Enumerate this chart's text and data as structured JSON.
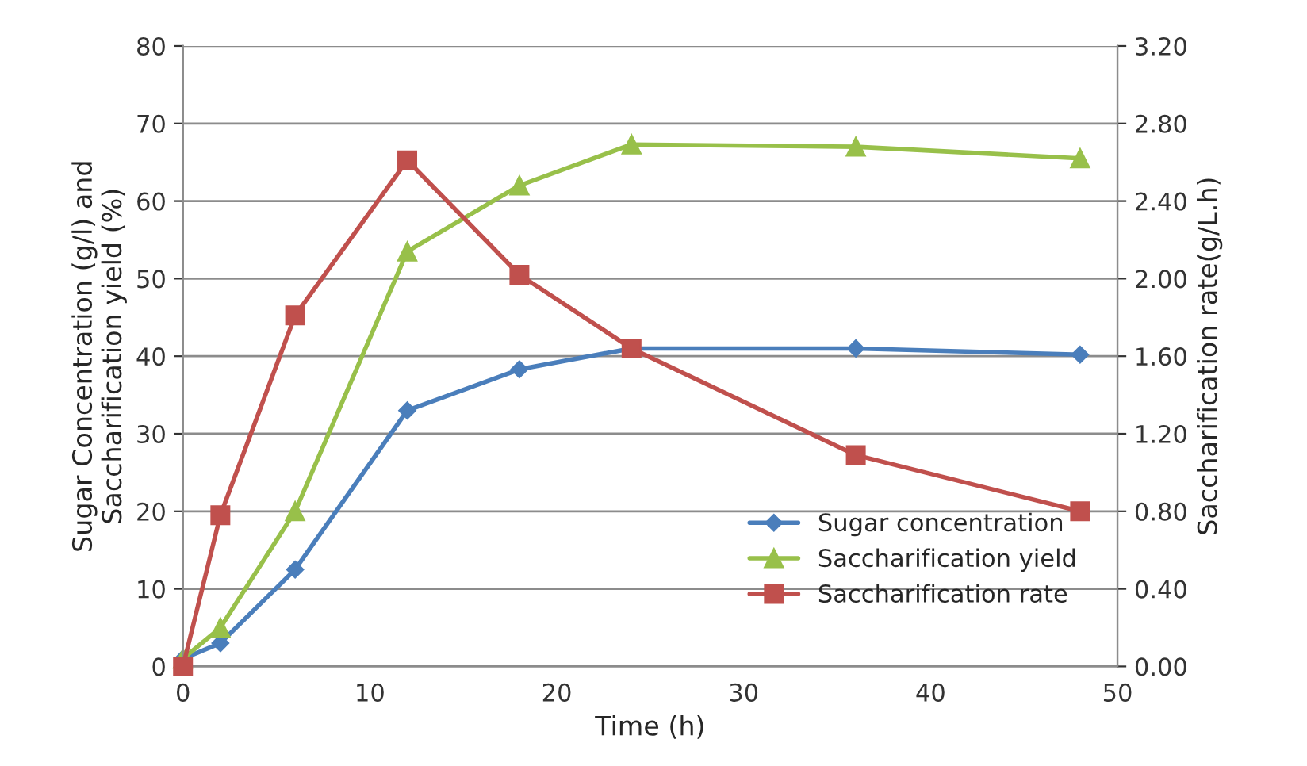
{
  "chart_data": {
    "type": "line",
    "xlabel": "Time (h)",
    "ylabel": "Sugar Concentration (g/l) and\nSaccharification yield (%)",
    "y2label": "Saccharification rate(g/L.h)",
    "x": [
      0,
      2,
      6,
      12,
      18,
      24,
      36,
      48
    ],
    "series": [
      {
        "name": "Sugar concentration",
        "color": "#4a7ebb",
        "marker": "diamond",
        "values": [
          1,
          3,
          12.5,
          33,
          38.3,
          41,
          41,
          40.2
        ]
      },
      {
        "name": "Saccharification yield",
        "color": "#98c04a",
        "marker": "triangle",
        "values": [
          1,
          5,
          20,
          53.5,
          62,
          67.3,
          67,
          65.5
        ]
      },
      {
        "name": "Saccharification rate",
        "color": "#c0504d",
        "marker": "square",
        "axis": "y2",
        "values": [
          0,
          0.78,
          1.81,
          2.61,
          2.02,
          1.64,
          1.09,
          0.8
        ]
      }
    ],
    "xlim": [
      0,
      50
    ],
    "xticks": [
      0,
      10,
      20,
      30,
      40,
      50
    ],
    "ylim": [
      0,
      80
    ],
    "yticks": [
      0,
      10,
      20,
      30,
      40,
      50,
      60,
      70,
      80
    ],
    "y2lim": [
      0,
      3.2
    ],
    "y2ticks": [
      {
        "value": 0,
        "label": "0.00"
      },
      {
        "value": 0.4,
        "label": "0.40"
      },
      {
        "value": 0.8,
        "label": "0.80"
      },
      {
        "value": 1.2,
        "label": "1.20"
      },
      {
        "value": 1.6,
        "label": "1.60"
      },
      {
        "value": 2.0,
        "label": "2.00"
      },
      {
        "value": 2.4,
        "label": "2.40"
      },
      {
        "value": 2.8,
        "label": "2.80"
      },
      {
        "value": 3.2,
        "label": "3.20"
      }
    ],
    "grid": "y",
    "legend": "bottom right"
  }
}
